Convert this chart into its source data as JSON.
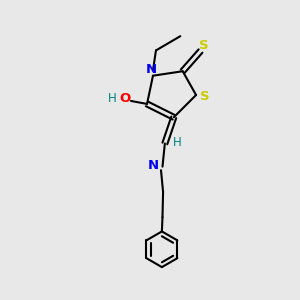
{
  "bg_color": "#e8e8e8",
  "S_color": "#cccc00",
  "N_color": "#0000ee",
  "O_color": "#ff0000",
  "H_color": "#008080",
  "C_color": "#000000",
  "bond_color": "#000000",
  "figsize": [
    3.0,
    3.0
  ],
  "dpi": 100,
  "xlim": [
    0,
    10
  ],
  "ylim": [
    0,
    10
  ]
}
